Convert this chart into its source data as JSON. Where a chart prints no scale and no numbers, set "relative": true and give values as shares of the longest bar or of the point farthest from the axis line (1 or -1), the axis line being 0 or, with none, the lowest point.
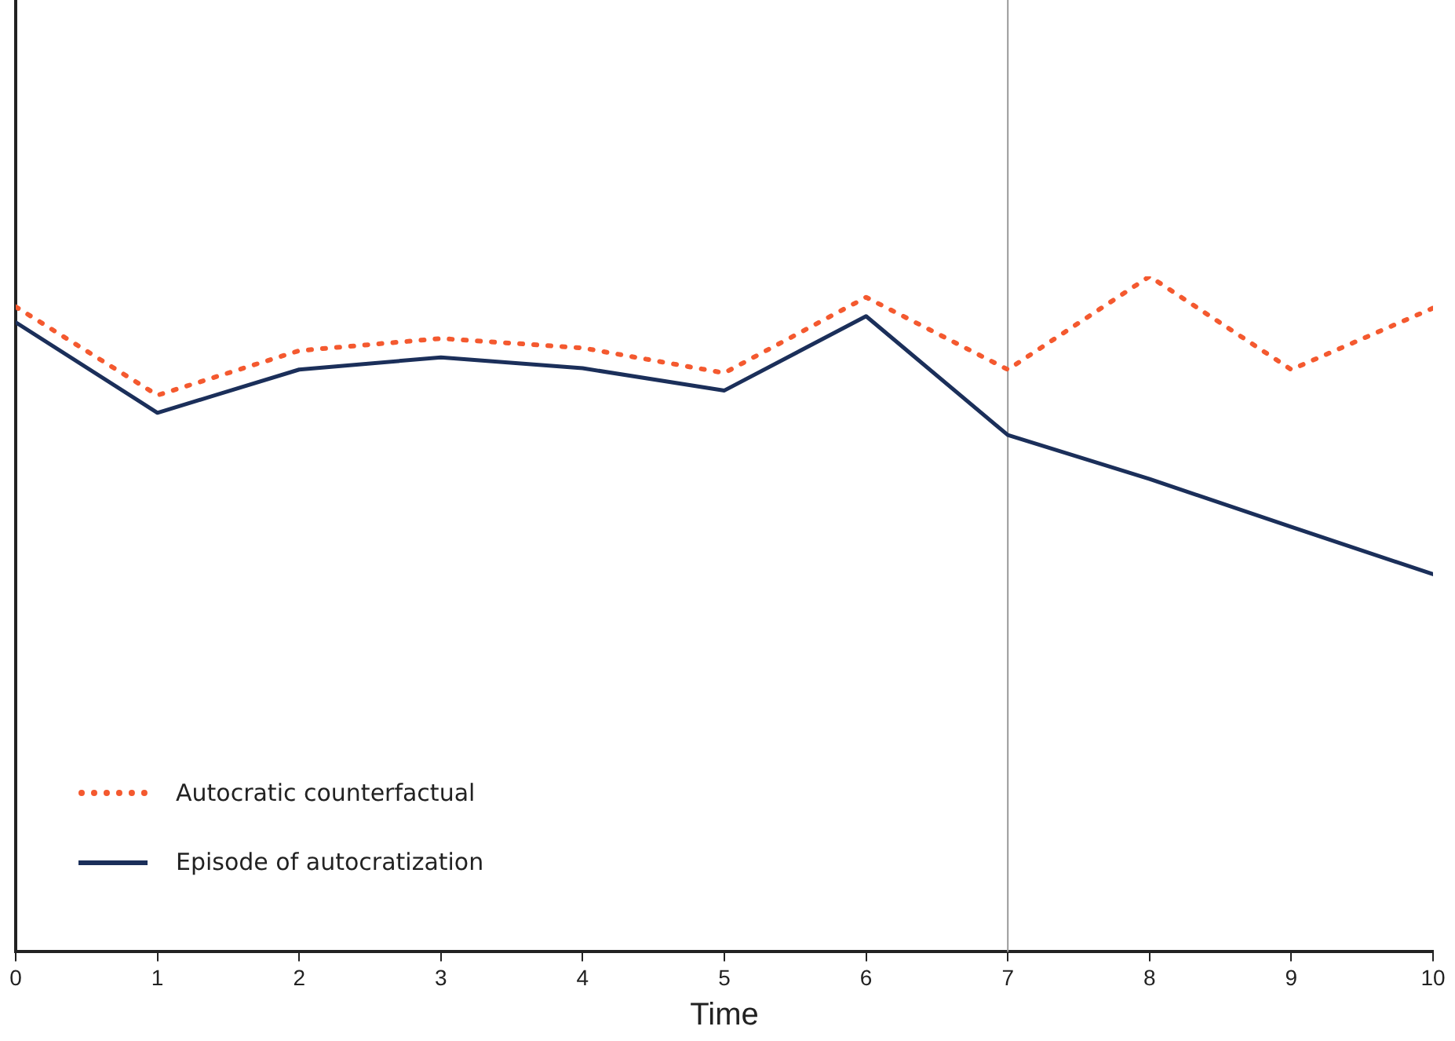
{
  "chart_data": {
    "type": "line",
    "relative": true,
    "xlabel": "Time",
    "x": [
      0,
      1,
      2,
      3,
      4,
      5,
      6,
      7,
      8,
      9,
      10
    ],
    "xlim": [
      0,
      10
    ],
    "xticks": [
      0,
      1,
      2,
      3,
      4,
      5,
      6,
      7,
      8,
      9,
      10
    ],
    "legend": "bottom left",
    "grid": false,
    "marker": "none",
    "series": [
      {
        "name": "Autocratic counterfactual",
        "color": "#f4592f",
        "line_style": "dotted",
        "values": [
          0.955,
          0.824,
          0.89,
          0.908,
          0.894,
          0.857,
          0.969,
          0.862,
          1,
          0.862,
          0.953
        ]
      },
      {
        "name": "Episode of autocratization",
        "color": "#1b2f5a",
        "line_style": "solid",
        "values": [
          0.932,
          0.798,
          0.862,
          0.88,
          0.864,
          0.831,
          0.941,
          0.765,
          0.7,
          0.629,
          0.559
        ]
      }
    ],
    "ref_lines": [
      {
        "axis": "x",
        "value": 7,
        "color": "#999999"
      }
    ]
  }
}
